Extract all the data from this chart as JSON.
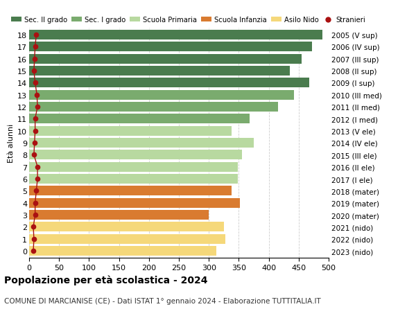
{
  "ages": [
    18,
    17,
    16,
    15,
    14,
    13,
    12,
    11,
    10,
    9,
    8,
    7,
    6,
    5,
    4,
    3,
    2,
    1,
    0
  ],
  "right_labels": [
    "2005 (V sup)",
    "2006 (IV sup)",
    "2007 (III sup)",
    "2008 (II sup)",
    "2009 (I sup)",
    "2010 (III med)",
    "2011 (II med)",
    "2012 (I med)",
    "2013 (V ele)",
    "2014 (IV ele)",
    "2015 (III ele)",
    "2016 (II ele)",
    "2017 (I ele)",
    "2018 (mater)",
    "2019 (mater)",
    "2020 (mater)",
    "2021 (nido)",
    "2022 (nido)",
    "2023 (nido)"
  ],
  "bar_values": [
    490,
    472,
    455,
    435,
    468,
    442,
    415,
    368,
    338,
    375,
    355,
    348,
    348,
    338,
    352,
    300,
    325,
    328,
    312
  ],
  "bar_colors": [
    "#4a7c4e",
    "#4a7c4e",
    "#4a7c4e",
    "#4a7c4e",
    "#4a7c4e",
    "#7aab6e",
    "#7aab6e",
    "#7aab6e",
    "#b8d9a0",
    "#b8d9a0",
    "#b8d9a0",
    "#b8d9a0",
    "#b8d9a0",
    "#d97b30",
    "#d97b30",
    "#d97b30",
    "#f5d87a",
    "#f5d87a",
    "#f5d87a"
  ],
  "stranieri_values": [
    12,
    10,
    9,
    8,
    10,
    13,
    14,
    10,
    10,
    9,
    8,
    14,
    14,
    12,
    10,
    10,
    7,
    8,
    7
  ],
  "legend_labels": [
    "Sec. II grado",
    "Sec. I grado",
    "Scuola Primaria",
    "Scuola Infanzia",
    "Asilo Nido",
    "Stranieri"
  ],
  "legend_colors": [
    "#4a7c4e",
    "#7aab6e",
    "#b8d9a0",
    "#d97b30",
    "#f5d87a",
    "#aa1111"
  ],
  "ylabel_left": "Età alunni",
  "xlim": [
    0,
    500
  ],
  "xticks": [
    0,
    50,
    100,
    150,
    200,
    250,
    300,
    350,
    400,
    450,
    500
  ],
  "title_bold": "Popolazione per età scolastica - 2024",
  "subtitle": "COMUNE DI MARCIANISE (CE) - Dati ISTAT 1° gennaio 2024 - Elaborazione TUTTITALIA.IT",
  "bg_color": "#ffffff",
  "bar_height": 0.82,
  "grid_color": "#cccccc"
}
